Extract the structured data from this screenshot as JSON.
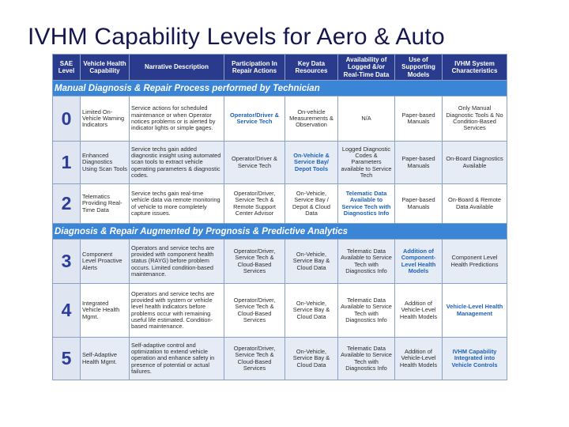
{
  "title": "IVHM Capability Levels for Aero & Auto",
  "table": {
    "headers": [
      "SAE Level",
      "Vehicle Health Capability",
      "Narrative Description",
      "Participation In Repair Actions",
      "Key Data Resources",
      "Availability of Logged &/or Real-Time Data",
      "Use of Supporting Models",
      "IVHM System Characteristics"
    ],
    "sections": [
      {
        "title": "Manual Diagnosis & Repair Process performed by Technician",
        "rows": [
          {
            "level": "0",
            "capability": "Limited On-Vehicle Warning Indicators",
            "narrative": "Service actions for scheduled maintenance or when Operator notices problems or is alerted by indicator lights or simple gages.",
            "participation": "Operator/Driver & Service Tech",
            "resources": "On-vehicle Measurements & Observation",
            "data": "N/A",
            "models": "Paper-based Manuals",
            "characteristics": "Only Manual Diagnostic Tools & No Condition-Based Services"
          },
          {
            "level": "1",
            "capability": "Enhanced Diagnostics Using Scan Tools",
            "narrative": "Service techs gain added diagnostic insight using automated scan tools to extract vehicle operating parameters & diagnostic codes.",
            "participation": "Operator/Driver & Service Tech",
            "resources": "On-Vehicle & Service Bay/ Depot Tools",
            "data": "Logged Diagnostic Codes & Parameters available to Service Tech",
            "models": "Paper-based Manuals",
            "characteristics": "On-Board Diagnostics Available"
          },
          {
            "level": "2",
            "capability": "Telematics Providing Real-Time Data",
            "narrative": "Service techs gain real-time vehicle data via remote monitoring of vehicle to more completely capture issues.",
            "participation": "Operator/Driver, Service Tech & Remote Support Center Advisor",
            "resources": "On-Vehicle, Service Bay / Depot & Cloud Data",
            "data": "Telematic Data Available to Service Tech with Diagnostics Info",
            "models": "Paper-based Manuals",
            "characteristics": "On-Board & Remote Data Available"
          }
        ]
      },
      {
        "title": "Diagnosis & Repair Augmented by Prognosis & Predictive Analytics",
        "rows": [
          {
            "level": "3",
            "capability": "Component Level Proactive Alerts",
            "narrative": "Operators and service techs are provided with component health status (RAYG) before problem occurs. Limited condition-based maintenance.",
            "participation": "Operator/Driver, Service Tech & Cloud-Based Services",
            "resources": "On-Vehicle, Service Bay & Cloud Data",
            "data": "Telematic Data Available to Service Tech with Diagnostics Info",
            "models": "Addition of Component-Level Health Models",
            "characteristics": "Component Level Health Predictions"
          },
          {
            "level": "4",
            "capability": "Integrated Vehicle Health Mgmt.",
            "narrative": "Operators and service techs are provided with system or vehicle level health indicators before problems occur with remaining useful life estimated. Condition-based maintenance.",
            "participation": "Operator/Driver, Service Tech & Cloud-Based Services",
            "resources": "On-Vehicle, Service Bay & Cloud Data",
            "data": "Telematic Data Available to Service Tech with Diagnostics Info",
            "models": "Addition of Vehicle-Level Health Models",
            "characteristics": "Vehicle-Level Health Management"
          },
          {
            "level": "5",
            "capability": "Self-Adaptive Health Mgmt.",
            "narrative": "Self-adaptive control and optimization to extend vehicle operation and enhance safety in presence of potential or actual failures.",
            "participation": "Operator/Driver, Service Tech & Cloud-Based Services",
            "resources": "On-Vehicle, Service Bay & Cloud Data",
            "data": "Telematic Data Available to Service Tech with Diagnostics Info",
            "models": "Addition of Vehicle-Level Health Models",
            "characteristics": "IVHM Capability Integrated into Vehicle Controls"
          }
        ]
      }
    ]
  },
  "colors": {
    "title_text": "#16164f",
    "header_bg": "#2a3a8c",
    "section_bg": "#3b85d6",
    "level_number": "#2c3d9a",
    "highlight_text": "#1f62b8",
    "row_alt_bg": "#e6ecf5"
  }
}
